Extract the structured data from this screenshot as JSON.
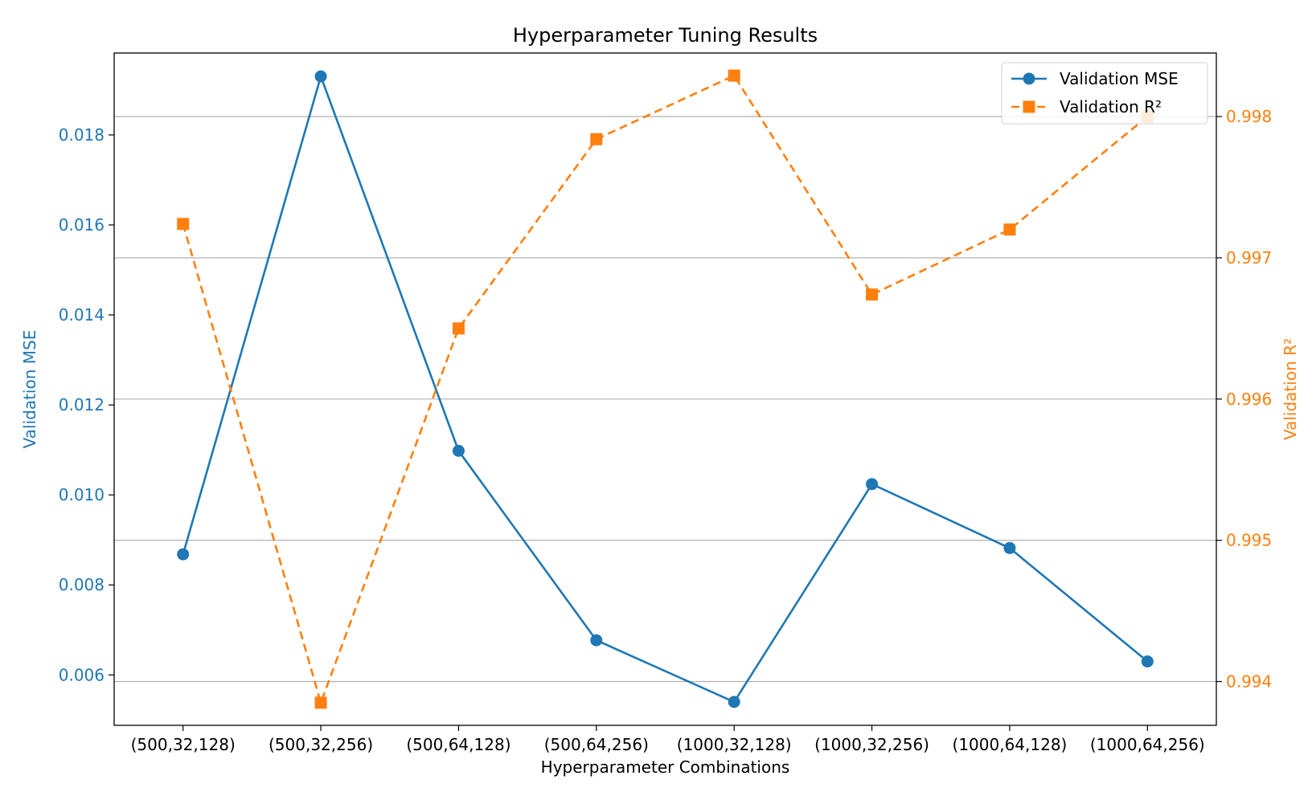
{
  "chart_data": {
    "type": "line",
    "title": "Hyperparameter Tuning Results",
    "xlabel": "Hyperparameter Combinations",
    "categories": [
      "(500,32,128)",
      "(500,32,256)",
      "(500,64,128)",
      "(500,64,256)",
      "(1000,32,128)",
      "(1000,32,256)",
      "(1000,64,128)",
      "(1000,64,256)"
    ],
    "series": [
      {
        "name": "Validation MSE",
        "axis": "left",
        "color": "#1f77b4",
        "marker": "circle",
        "linestyle": "solid",
        "values": [
          0.00868,
          0.0193,
          0.01098,
          0.00677,
          0.0054,
          0.01024,
          0.00882,
          0.0063
        ]
      },
      {
        "name": "Validation R²",
        "axis": "right",
        "color": "#ff7f0e",
        "marker": "square",
        "linestyle": "dashed",
        "values": [
          0.99724,
          0.99385,
          0.9965,
          0.99784,
          0.99829,
          0.99674,
          0.9972,
          0.998
        ]
      }
    ],
    "y_left": {
      "label": "Validation MSE",
      "color": "#1f77b4",
      "ylim": [
        0.00488,
        0.01982
      ],
      "ticks": [
        0.006,
        0.008,
        0.01,
        0.012,
        0.014,
        0.016,
        0.018
      ],
      "tick_labels": [
        "0.006",
        "0.008",
        "0.010",
        "0.012",
        "0.014",
        "0.016",
        "0.018"
      ]
    },
    "y_right": {
      "label": "Validation R²",
      "color": "#ff7f0e",
      "ylim": [
        0.99369,
        0.99845
      ],
      "ticks": [
        0.994,
        0.995,
        0.996,
        0.997,
        0.998
      ],
      "tick_labels": [
        "0.994",
        "0.995",
        "0.996",
        "0.997",
        "0.998"
      ]
    },
    "grid": "horizontal lines at right-axis ticks",
    "legend": "top-right"
  }
}
